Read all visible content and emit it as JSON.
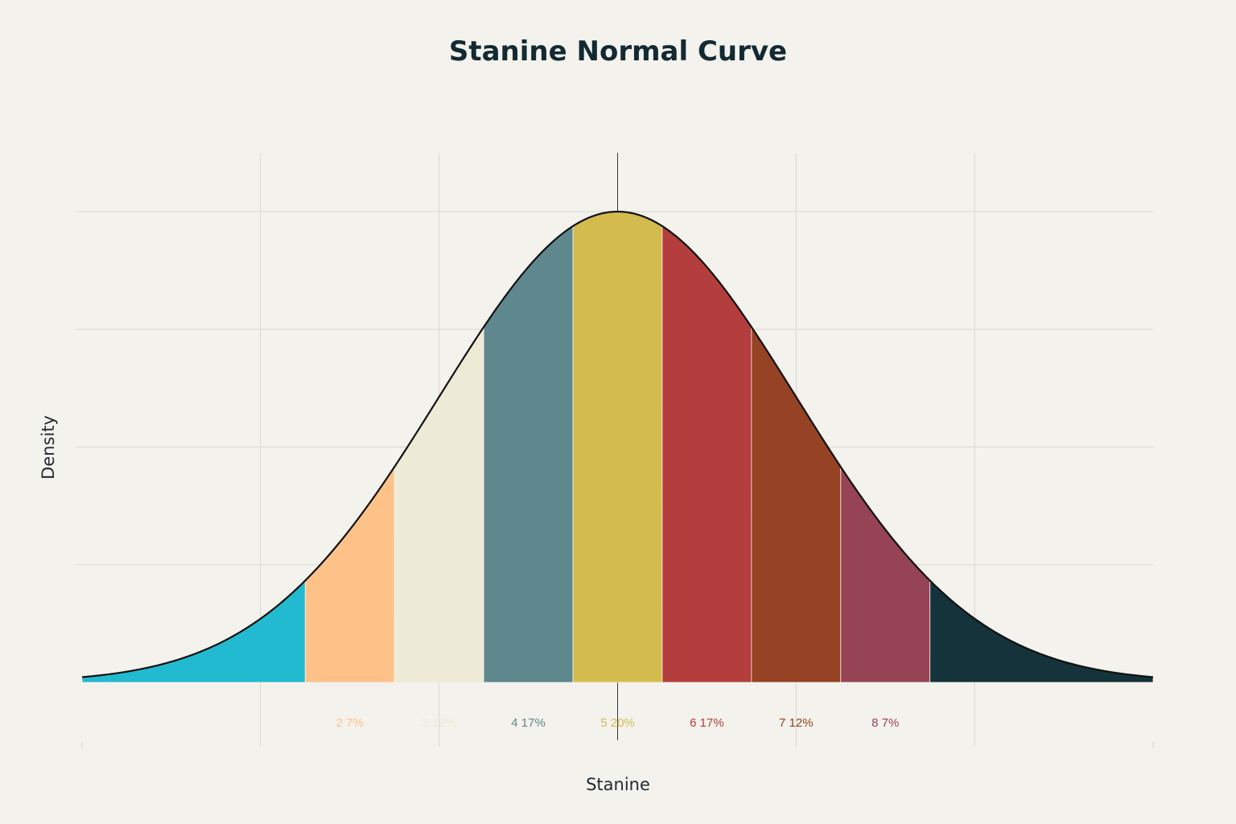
{
  "chart_data": {
    "type": "area",
    "title": "Stanine Normal Curve",
    "xlabel": "Stanine",
    "ylabel": "Density",
    "distribution": "standard normal",
    "xlim": [
      -3,
      3
    ],
    "ylim": [
      0,
      0.4
    ],
    "grid": true,
    "legend": "none",
    "band_boundaries": [
      -3,
      -1.75,
      -1.25,
      -0.75,
      -0.25,
      0.25,
      0.75,
      1.25,
      1.75,
      3
    ],
    "stanines": [
      {
        "stanine": 1,
        "label": "",
        "color": "#22bad0"
      },
      {
        "stanine": 2,
        "label": "2 7%",
        "color": "#fec288"
      },
      {
        "stanine": 3,
        "label": "3 12%",
        "color": "#edead6"
      },
      {
        "stanine": 4,
        "label": "4 17%",
        "color": "#5e888e"
      },
      {
        "stanine": 5,
        "label": "5 20%",
        "color": "#d4bb4e"
      },
      {
        "stanine": 6,
        "label": "6 17%",
        "color": "#b43e3d"
      },
      {
        "stanine": 7,
        "label": "7 12%",
        "color": "#964225"
      },
      {
        "stanine": 8,
        "label": "8 7%",
        "color": "#964355"
      },
      {
        "stanine": 9,
        "label": "",
        "color": "#14333b"
      }
    ],
    "curve_color": "#111111"
  }
}
